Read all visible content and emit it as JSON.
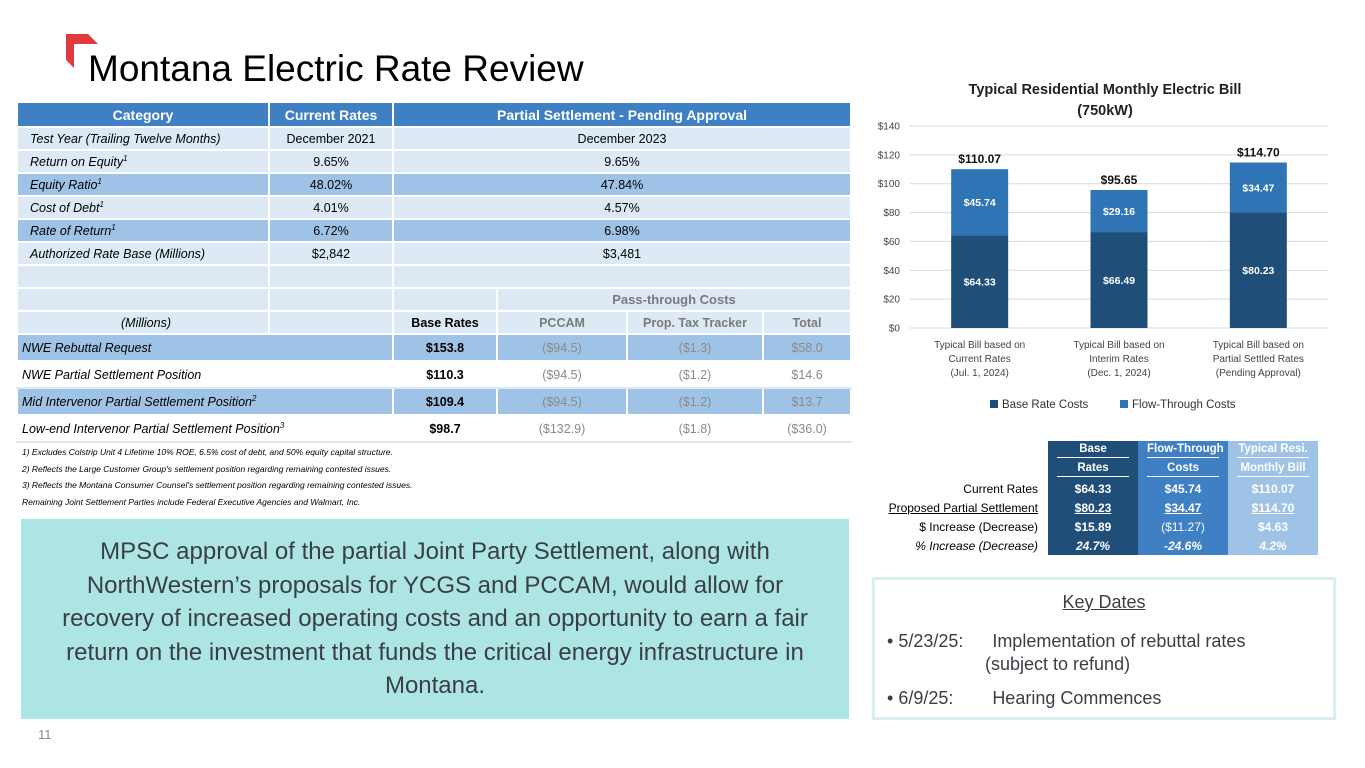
{
  "page_title": "Montana Electric Rate Review",
  "slide_number": "11",
  "brand_color": "#e03a3e",
  "main_table": {
    "headers": {
      "category": "Category",
      "current": "Current Rates",
      "settlement": "Partial Settlement - Pending Approval"
    },
    "rows": [
      {
        "label": "Test Year (Trailing Twelve Months)",
        "sup": "",
        "current": "December 2021",
        "settlement": "December 2023"
      },
      {
        "label": "Return on Equity",
        "sup": "1",
        "current": "9.65%",
        "settlement": "9.65%"
      },
      {
        "label": "Equity Ratio",
        "sup": "1",
        "current": "48.02%",
        "settlement": "47.84%"
      },
      {
        "label": "Cost of Debt",
        "sup": "1",
        "current": "4.01%",
        "settlement": "4.57%"
      },
      {
        "label": "Rate of Return",
        "sup": "1",
        "current": "6.72%",
        "settlement": "6.98%"
      },
      {
        "label": "Authorized Rate Base (Millions)",
        "sup": "",
        "current": "$2,842",
        "settlement": "$3,481"
      }
    ],
    "pass_through_label": "Pass-through Costs",
    "sub_headers": {
      "millions": "(Millions)",
      "base_rates": "Base Rates",
      "pccam": "PCCAM",
      "prop_tax": "Prop. Tax Tracker",
      "total": "Total"
    },
    "settlement_rows": [
      {
        "label": "NWE Rebuttal Request",
        "sup": "",
        "base": "$153.8",
        "pccam": "($94.5)",
        "tax": "($1.3)",
        "total": "$58.0"
      },
      {
        "label": "NWE Partial Settlement Position",
        "sup": "",
        "base": "$110.3",
        "pccam": "($94.5)",
        "tax": "($1.2)",
        "total": "$14.6"
      },
      {
        "label": "Mid Intervenor Partial Settlement Position",
        "sup": "2",
        "base": "$109.4",
        "pccam": "($94.5)",
        "tax": "($1.2)",
        "total": "$13.7"
      },
      {
        "label": "Low-end Intervenor Partial Settlement Position",
        "sup": "3",
        "base": "$98.7",
        "pccam": "($132.9)",
        "tax": "($1.8)",
        "total": "($36.0)"
      }
    ]
  },
  "footnotes": [
    "1) Excludes Colstrip Unit 4 Lifetime 10% ROE, 6.5% cost of debt, and 50% equity capital structure.",
    "2) Reflects the Large Customer Group's settlement position regarding remaining contested issues.",
    "3) Reflects the Montana Consumer Counsel's settlement position regarding remaining contested issues.",
    "Remaining Joint Settlement Parties include Federal Executive Agencies and Walmart, Inc."
  ],
  "callout_text": "MPSC approval of the partial Joint Party Settlement, along with NorthWestern’s proposals for YCGS and PCCAM, would allow for recovery of increased operating costs and an opportunity to earn a fair return on the investment that funds the critical energy infrastructure in Montana.",
  "chart_data": {
    "type": "bar",
    "stacked": true,
    "title": "Typical Residential Monthly Electric Bill",
    "subtitle": "(750kW)",
    "categories": [
      [
        "Typical Bill based on",
        "Current Rates",
        "(Jul. 1, 2024)"
      ],
      [
        "Typical Bill based on",
        "Interim Rates",
        "(Dec. 1, 2024)"
      ],
      [
        "Typical Bill based on",
        "Partial Settled Rates",
        "(Pending Approval)"
      ]
    ],
    "series": [
      {
        "name": "Base Rate Costs",
        "values": [
          64.33,
          66.49,
          80.23
        ],
        "labels": [
          "$64.33",
          "$66.49",
          "$80.23"
        ],
        "color": "#1f4e79"
      },
      {
        "name": "Flow-Through Costs",
        "values": [
          45.74,
          29.16,
          34.47
        ],
        "labels": [
          "$45.74",
          "$29.16",
          "$34.47"
        ],
        "color": "#2f75b5"
      }
    ],
    "totals": [
      "$110.07",
      "$95.65",
      "$114.70"
    ],
    "ylim": [
      0,
      140
    ],
    "yticks": [
      0,
      20,
      40,
      60,
      80,
      100,
      120,
      140
    ],
    "ytick_labels": [
      "$0",
      "$20",
      "$40",
      "$60",
      "$80",
      "$100",
      "$120",
      "$140"
    ],
    "grid": true,
    "legend": "bottom"
  },
  "summary_table": {
    "headers": [
      "Base Rates",
      "Flow-Through Costs",
      "Typical Resi. Monthly Bill"
    ],
    "header_lines": [
      [
        "Base",
        "Rates"
      ],
      [
        "Flow-Through",
        "Costs"
      ],
      [
        "Typical Resi.",
        "Monthly Bill"
      ]
    ],
    "rows": [
      {
        "label": "Current Rates",
        "values": [
          "$64.33",
          "$45.74",
          "$110.07"
        ]
      },
      {
        "label": "Proposed Partial Settlement",
        "values": [
          "$80.23",
          "$34.47",
          "$114.70"
        ]
      },
      {
        "label": "$ Increase (Decrease)",
        "values": [
          "$15.89",
          "($11.27)",
          "$4.63"
        ]
      },
      {
        "label": "% Increase (Decrease)",
        "values": [
          "24.7%",
          "-24.6%",
          "4.2%"
        ]
      }
    ]
  },
  "key_dates": {
    "title": "Key Dates",
    "items": [
      {
        "date": "5/23/25:",
        "text": "Implementation of rebuttal rates",
        "text2": "(subject to refund)"
      },
      {
        "date": "6/9/25:",
        "text": "Hearing Commences",
        "text2": ""
      }
    ]
  }
}
